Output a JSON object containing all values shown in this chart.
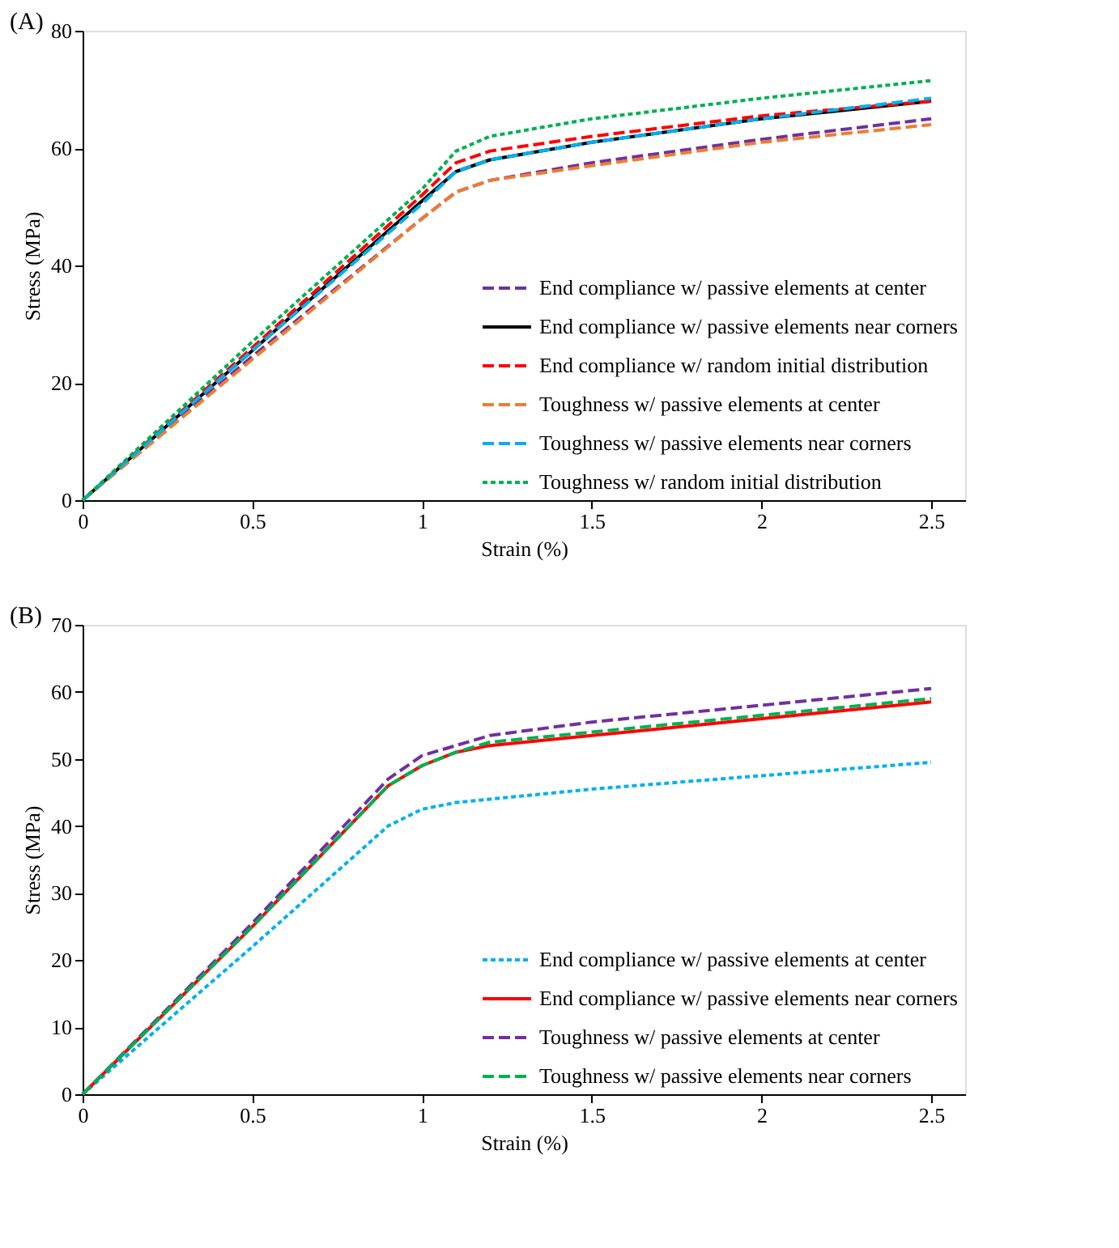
{
  "chart_data": [
    {
      "type": "line",
      "title": "(A)",
      "xlabel": "Strain (%)",
      "ylabel": "Stress (MPa)",
      "xlim": [
        0,
        2.6
      ],
      "ylim": [
        0,
        80
      ],
      "xticks": [
        0,
        0.5,
        1,
        1.5,
        2,
        2.5
      ],
      "yticks": [
        0,
        20,
        40,
        60,
        80
      ],
      "grid": false,
      "legend": "bottom right",
      "marker": "none",
      "x": [
        0,
        0.5,
        1,
        1.1,
        1.2,
        1.5,
        2,
        2.5
      ],
      "series": [
        {
          "name": "End compliance w/ passive elements at center",
          "color": "#7030a0",
          "line_style": "dashed",
          "values": [
            0,
            24.5,
            48,
            52.5,
            54.5,
            57.5,
            61.5,
            65
          ]
        },
        {
          "name": "End compliance w/ passive elements near corners",
          "color": "#000000",
          "line_style": "solid",
          "values": [
            0,
            25.5,
            51,
            56,
            58,
            61,
            65,
            68
          ]
        },
        {
          "name": "End compliance w/ random initial distribution",
          "color": "#ff0000",
          "line_style": "dashed",
          "values": [
            0,
            26,
            52,
            57.5,
            59.5,
            62,
            65.5,
            68
          ]
        },
        {
          "name": "Toughness w/ passive elements at center",
          "color": "#ed7d31",
          "line_style": "dashed",
          "values": [
            0,
            24,
            48,
            52.5,
            54.5,
            57,
            61,
            64
          ]
        },
        {
          "name": "Toughness  w/ passive elements near corners",
          "color": "#00b0f0",
          "line_style": "dashed",
          "values": [
            0,
            25.5,
            50.5,
            56,
            58,
            61,
            65,
            68.5
          ]
        },
        {
          "name": "Toughness w/ random initial distribution",
          "color": "#00b050",
          "line_style": "dotted",
          "values": [
            0,
            27,
            53,
            59.5,
            62,
            65,
            68.5,
            71.5
          ]
        }
      ]
    },
    {
      "type": "line",
      "title": "(B)",
      "xlabel": "Strain (%)",
      "ylabel": "Stress (MPa)",
      "xlim": [
        0,
        2.6
      ],
      "ylim": [
        0,
        70
      ],
      "xticks": [
        0,
        0.5,
        1,
        1.5,
        2,
        2.5
      ],
      "yticks": [
        0,
        10,
        20,
        30,
        40,
        50,
        60,
        70
      ],
      "grid": false,
      "legend": "bottom right",
      "marker": "none",
      "x": [
        0,
        0.5,
        0.9,
        1,
        1.1,
        1.2,
        1.5,
        2,
        2.5
      ],
      "series": [
        {
          "name": "End compliance w/ passive elements at center",
          "color": "#00b0f0",
          "line_style": "dotted",
          "values": [
            0,
            22,
            40,
            42.5,
            43.5,
            44,
            45.5,
            47.5,
            49.5
          ]
        },
        {
          "name": "End compliance w/ passive elements near corners",
          "color": "#ff0000",
          "line_style": "solid",
          "values": [
            0,
            25,
            46,
            49,
            51,
            52,
            53.5,
            56,
            58.5
          ]
        },
        {
          "name": "Toughness w/ passive elements at center",
          "color": "#7030a0",
          "line_style": "dashed",
          "values": [
            0,
            25.5,
            47,
            50.5,
            52,
            53.5,
            55.5,
            58,
            60.5
          ]
        },
        {
          "name": "Toughness  w/ passive elements near corners",
          "color": "#00b050",
          "line_style": "dashed",
          "values": [
            0,
            25,
            46,
            49,
            51,
            52.5,
            54,
            56.5,
            59
          ]
        }
      ]
    }
  ]
}
